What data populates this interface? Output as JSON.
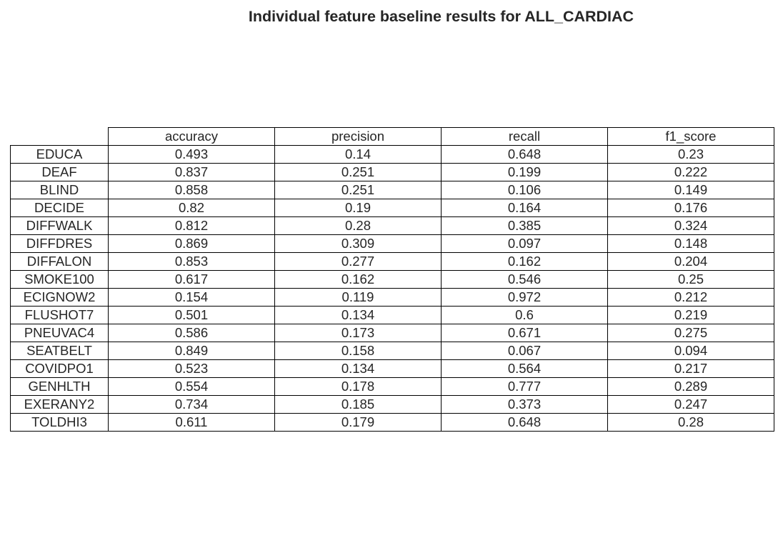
{
  "chart_data": {
    "type": "table",
    "title": "Individual feature baseline results for ALL_CARDIAC",
    "columns": [
      "accuracy",
      "precision",
      "recall",
      "f1_score"
    ],
    "rows": [
      {
        "label": "EDUCA",
        "values": [
          "0.493",
          "0.14",
          "0.648",
          "0.23"
        ]
      },
      {
        "label": "DEAF",
        "values": [
          "0.837",
          "0.251",
          "0.199",
          "0.222"
        ]
      },
      {
        "label": "BLIND",
        "values": [
          "0.858",
          "0.251",
          "0.106",
          "0.149"
        ]
      },
      {
        "label": "DECIDE",
        "values": [
          "0.82",
          "0.19",
          "0.164",
          "0.176"
        ]
      },
      {
        "label": "DIFFWALK",
        "values": [
          "0.812",
          "0.28",
          "0.385",
          "0.324"
        ]
      },
      {
        "label": "DIFFDRES",
        "values": [
          "0.869",
          "0.309",
          "0.097",
          "0.148"
        ]
      },
      {
        "label": "DIFFALON",
        "values": [
          "0.853",
          "0.277",
          "0.162",
          "0.204"
        ]
      },
      {
        "label": "SMOKE100",
        "values": [
          "0.617",
          "0.162",
          "0.546",
          "0.25"
        ]
      },
      {
        "label": "ECIGNOW2",
        "values": [
          "0.154",
          "0.119",
          "0.972",
          "0.212"
        ]
      },
      {
        "label": "FLUSHOT7",
        "values": [
          "0.501",
          "0.134",
          "0.6",
          "0.219"
        ]
      },
      {
        "label": "PNEUVAC4",
        "values": [
          "0.586",
          "0.173",
          "0.671",
          "0.275"
        ]
      },
      {
        "label": "SEATBELT",
        "values": [
          "0.849",
          "0.158",
          "0.067",
          "0.094"
        ]
      },
      {
        "label": "COVIDPO1",
        "values": [
          "0.523",
          "0.134",
          "0.564",
          "0.217"
        ]
      },
      {
        "label": "GENHLTH",
        "values": [
          "0.554",
          "0.178",
          "0.777",
          "0.289"
        ]
      },
      {
        "label": "EXERANY2",
        "values": [
          "0.734",
          "0.185",
          "0.373",
          "0.247"
        ]
      },
      {
        "label": "TOLDHI3",
        "values": [
          "0.611",
          "0.179",
          "0.648",
          "0.28"
        ]
      }
    ]
  }
}
